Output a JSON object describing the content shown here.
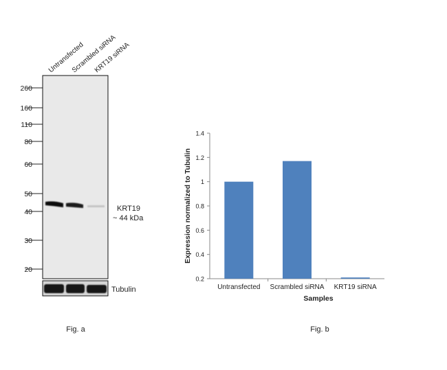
{
  "fig_a": {
    "caption": "Fig. a",
    "lanes": [
      "Untransfected",
      "Scrambled siRNA",
      "KRT19 siRNA"
    ],
    "markers": [
      "260",
      "160",
      "110",
      "80",
      "60",
      "50",
      "40",
      "30",
      "20"
    ],
    "band_label": "KRT19",
    "band_size": "~ 44 kDa",
    "loading_label": "Tubulin"
  },
  "fig_b": {
    "caption": "Fig. b"
  },
  "chart_data": {
    "type": "bar",
    "title": "",
    "xlabel": "Samples",
    "ylabel": "Expression normalized to Tubulin",
    "categories": [
      "Untransfected",
      "Scrambled siRNA",
      "KRT19 siRNA"
    ],
    "values": [
      1.0,
      1.17,
      0.21
    ],
    "ylim": [
      0.2,
      1.4
    ],
    "yticks": [
      "0.2",
      "0.4",
      "0.6",
      "0.8",
      "1",
      "1.2",
      "1.4"
    ],
    "grid": false,
    "bar_color": "#4f81bd"
  }
}
